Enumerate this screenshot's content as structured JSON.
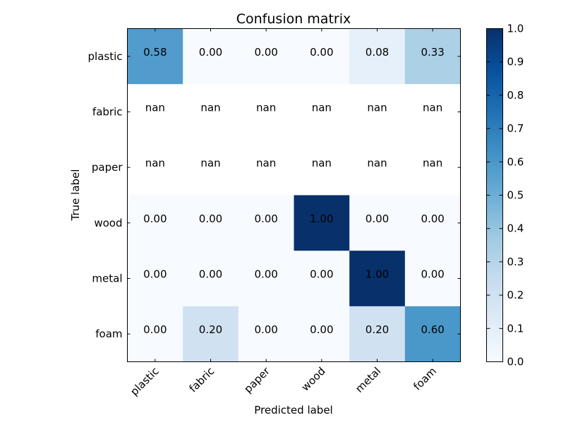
{
  "chart_data": {
    "type": "heatmap",
    "title": "Confusion matrix",
    "xlabel": "Predicted label",
    "ylabel": "True label",
    "x_categories": [
      "plastic",
      "fabric",
      "paper",
      "wood",
      "metal",
      "foam"
    ],
    "y_categories": [
      "plastic",
      "fabric",
      "paper",
      "wood",
      "metal",
      "foam"
    ],
    "cell_text": [
      [
        "0.58",
        "0.00",
        "0.00",
        "0.00",
        "0.08",
        "0.33"
      ],
      [
        "nan",
        "nan",
        "nan",
        "nan",
        "nan",
        "nan"
      ],
      [
        "nan",
        "nan",
        "nan",
        "nan",
        "nan",
        "nan"
      ],
      [
        "0.00",
        "0.00",
        "0.00",
        "1.00",
        "0.00",
        "0.00"
      ],
      [
        "0.00",
        "0.00",
        "0.00",
        "0.00",
        "1.00",
        "0.00"
      ],
      [
        "0.00",
        "0.20",
        "0.00",
        "0.00",
        "0.20",
        "0.60"
      ]
    ],
    "values": [
      [
        0.58,
        0.0,
        0.0,
        0.0,
        0.083,
        0.33
      ],
      [
        null,
        null,
        null,
        null,
        null,
        null
      ],
      [
        null,
        null,
        null,
        null,
        null,
        null
      ],
      [
        0.0,
        0.0,
        0.0,
        1.0,
        0.0,
        0.0
      ],
      [
        0.0,
        0.0,
        0.0,
        0.0,
        1.0,
        0.0
      ],
      [
        0.0,
        0.2,
        0.0,
        0.0,
        0.2,
        0.6
      ]
    ],
    "colormap": "Blues",
    "colorbar": {
      "range": [
        0.0,
        1.0
      ],
      "ticks": [
        "0.0",
        "0.1",
        "0.2",
        "0.3",
        "0.4",
        "0.5",
        "0.6",
        "0.7",
        "0.8",
        "0.9",
        "1.0"
      ]
    },
    "grid": false,
    "legend": "colorbar-right"
  }
}
